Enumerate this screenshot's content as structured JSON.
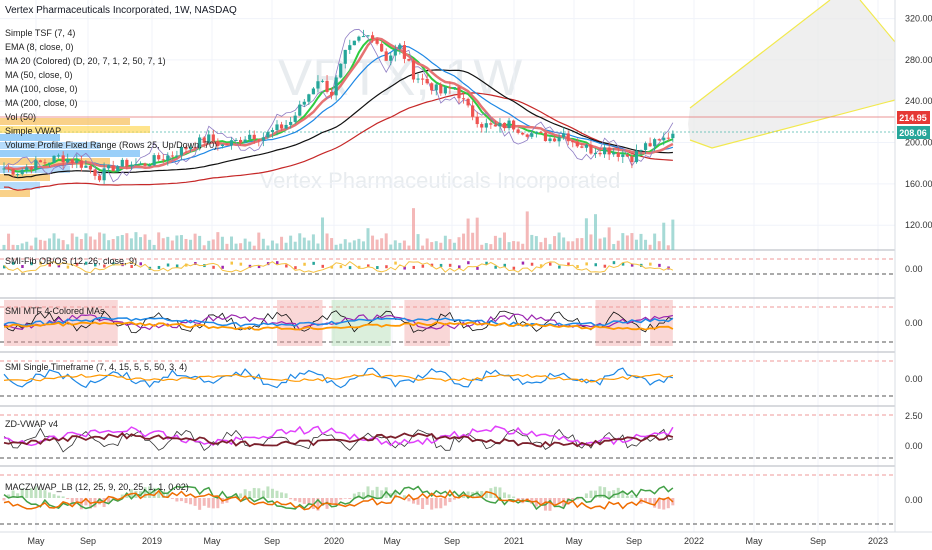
{
  "header": {
    "title": "Vertex Pharmaceuticals Incorporated, 1W, NASDAQ",
    "watermark_symbol": "VRTX, 1W",
    "watermark_name": "Vertex Pharmaceuticals Incorporated"
  },
  "indicators_main": [
    "Simple TSF (7, 4)",
    "EMA (8, close, 0)",
    "MA 20 (Colored) (D, 20, 7, 1, 2, 50, 7, 1)",
    "MA (50, close, 0)",
    "MA (100, close, 0)",
    "MA (200, close, 0)",
    "Vol (50)",
    "Simple VWAP",
    "Volume Profile Fixed Range (Rows 25, Up/Down, 70)"
  ],
  "panes": [
    {
      "label": "SMI-Fib OB/OS (12, 26, close, 9)",
      "tick": "0.00"
    },
    {
      "label": "SMI MTF 4-Colored MAs",
      "tick": "0.00"
    },
    {
      "label": "SMI Single Timeframe (7, 4, 15, 5, 5, 50, 3, 4)",
      "tick": "0.00"
    },
    {
      "label": "ZD-VWAP v4",
      "tick": "0.00",
      "tick2": "2.50"
    },
    {
      "label": "MACZVWAP_LB (12, 25, 9, 20, 25, 1, 1, 0.02)",
      "tick": "0.00"
    }
  ],
  "colors": {
    "up": "#26a69a",
    "down": "#ef5350",
    "ema": "#2ecc40",
    "ma20": "#e57373",
    "ma50": "#1e88e5",
    "ma100": "#111111",
    "ma200": "#c62828",
    "tsf": "#8e7cc3",
    "projection": "#f2e94e",
    "price_label_red": "#e53935",
    "price_label_green": "#26a69a"
  },
  "chart_data": {
    "type": "candlestick",
    "title": "Vertex Pharmaceuticals Incorporated, 1W, NASDAQ",
    "y_ticks": [
      120,
      160,
      200,
      240,
      280,
      320
    ],
    "ylim": [
      96,
      338
    ],
    "x_ticks": [
      "May",
      "Sep",
      "2019",
      "May",
      "Sep",
      "2020",
      "May",
      "Sep",
      "2021",
      "May",
      "Sep",
      "2022",
      "May",
      "Sep",
      "2023"
    ],
    "last_price_labels": [
      "214.95",
      "208.06"
    ],
    "close_path": [
      [
        0,
        175
      ],
      [
        3,
        172
      ],
      [
        6,
        178
      ],
      [
        9,
        181
      ],
      [
        12,
        186
      ],
      [
        15,
        183
      ],
      [
        18,
        177
      ],
      [
        21,
        168
      ],
      [
        24,
        176
      ],
      [
        27,
        180
      ],
      [
        30,
        178
      ],
      [
        33,
        183
      ],
      [
        36,
        187
      ],
      [
        39,
        193
      ],
      [
        42,
        199
      ],
      [
        45,
        204
      ],
      [
        48,
        197
      ],
      [
        51,
        201
      ],
      [
        54,
        208
      ],
      [
        57,
        206
      ],
      [
        60,
        213
      ],
      [
        63,
        220
      ],
      [
        66,
        240
      ],
      [
        69,
        262
      ],
      [
        72,
        248
      ],
      [
        75,
        285
      ],
      [
        78,
        300
      ],
      [
        81,
        305
      ],
      [
        84,
        282
      ],
      [
        87,
        292
      ],
      [
        90,
        266
      ],
      [
        93,
        258
      ],
      [
        96,
        248
      ],
      [
        99,
        254
      ],
      [
        102,
        232
      ],
      [
        105,
        218
      ],
      [
        108,
        214
      ],
      [
        111,
        218
      ],
      [
        114,
        212
      ],
      [
        117,
        207
      ],
      [
        120,
        204
      ],
      [
        123,
        209
      ],
      [
        126,
        199
      ],
      [
        129,
        193
      ],
      [
        132,
        194
      ],
      [
        135,
        190
      ],
      [
        138,
        186
      ],
      [
        141,
        197
      ],
      [
        144,
        200
      ],
      [
        147,
        210
      ]
    ],
    "main_ylabel": "",
    "xlabel": ""
  }
}
